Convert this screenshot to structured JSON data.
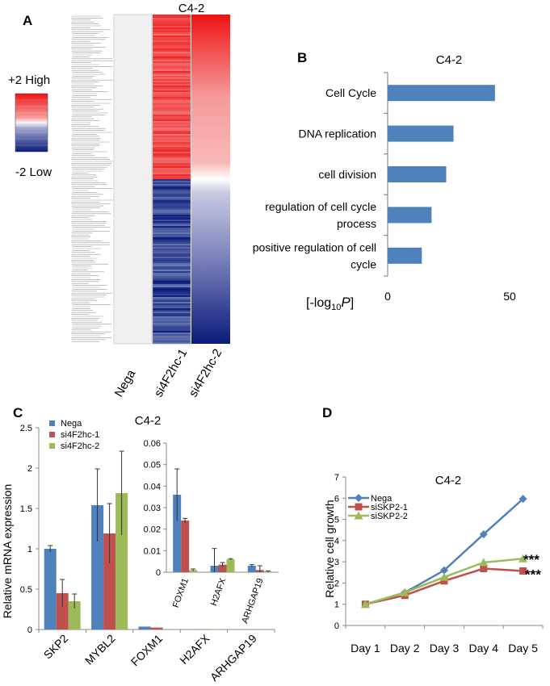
{
  "panels": {
    "a": "A",
    "b": "B",
    "c": "C",
    "d": "D"
  },
  "heatmap": {
    "title": "C4-2",
    "scale_high": "+2 High",
    "scale_low": "-2 Low",
    "columns": [
      "Nega",
      "si4F2hc-1",
      "si4F2hc-2"
    ],
    "colors": {
      "high": "#ee1111",
      "mid": "#f5f5f5",
      "low": "#0a1a7a",
      "nega": "#f0f0f0"
    }
  },
  "chart_data": [
    {
      "id": "B",
      "type": "bar",
      "orientation": "horizontal",
      "title": "C4-2",
      "categories": [
        "Cell Cycle",
        "DNA replication",
        "cell division",
        "regulation of cell cycle process",
        "positive regulation of cell cycle"
      ],
      "category_lines": [
        [
          "Cell Cycle"
        ],
        [
          "DNA replication"
        ],
        [
          "cell division"
        ],
        [
          "regulation of cell cycle",
          "process"
        ],
        [
          "positive regulation of cell",
          "cycle"
        ]
      ],
      "values": [
        44,
        27,
        24,
        18,
        14
      ],
      "xlim": [
        0,
        50
      ],
      "xticks": [
        "0",
        "50"
      ],
      "xlabel_parts": [
        "[-log",
        "10",
        "P",
        "]"
      ],
      "color": "#4f81bd"
    },
    {
      "id": "C",
      "type": "bar",
      "title": "C4-2",
      "ylabel": "Relative mRNA expression",
      "categories": [
        "SKP2",
        "MYBL2",
        "FOXM1",
        "H2AFX",
        "ARHGAP19"
      ],
      "ylim": [
        0,
        2.5
      ],
      "yticks": [
        "0",
        "0.5",
        "1",
        "1.5",
        "2",
        "2.5"
      ],
      "series": [
        {
          "name": "Nega",
          "color": "#4f81bd",
          "values": [
            1.0,
            1.54,
            0.036,
            0.003,
            0.003
          ],
          "errors": [
            0.04,
            0.45,
            0.012,
            0.008,
            0.0005
          ]
        },
        {
          "name": "si4F2hc-1",
          "color": "#c0504d",
          "values": [
            0.45,
            1.19,
            0.024,
            0.0035,
            0.001
          ],
          "errors": [
            0.17,
            0.37,
            0.001,
            0.001,
            0.002
          ]
        },
        {
          "name": "si4F2hc-2",
          "color": "#9bbb59",
          "values": [
            0.35,
            1.69,
            0.001,
            0.006,
            0.0004
          ],
          "errors": [
            0.09,
            0.52,
            0.0005,
            0.0003,
            0.0002
          ]
        }
      ],
      "inset": {
        "categories": [
          "FOXM1",
          "H2AFX",
          "ARHGAP19"
        ],
        "ylim": [
          0,
          0.06
        ],
        "yticks": [
          "0",
          "0.01",
          "0.02",
          "0.03",
          "0.04",
          "0.05",
          "0.06"
        ]
      }
    },
    {
      "id": "D",
      "type": "line",
      "title": "C4-2",
      "ylabel": "Relative cell growth",
      "x": [
        "Day 1",
        "Day 2",
        "Day 3",
        "Day 4",
        "Day 5"
      ],
      "ylim": [
        0,
        7
      ],
      "yticks": [
        "0",
        "1",
        "2",
        "3",
        "4",
        "5",
        "6",
        "7"
      ],
      "series": [
        {
          "name": "Nega",
          "color": "#4f81bd",
          "marker": "diamond",
          "values": [
            1.0,
            1.55,
            2.6,
            4.3,
            5.97
          ]
        },
        {
          "name": "siSKP2-1",
          "color": "#c0504d",
          "marker": "square",
          "values": [
            1.0,
            1.42,
            2.1,
            2.68,
            2.57
          ]
        },
        {
          "name": "siSKP2-2",
          "color": "#9bbb59",
          "marker": "triangle",
          "values": [
            1.0,
            1.55,
            2.28,
            2.97,
            3.15
          ]
        }
      ],
      "annotations": [
        "***",
        "***"
      ]
    }
  ]
}
